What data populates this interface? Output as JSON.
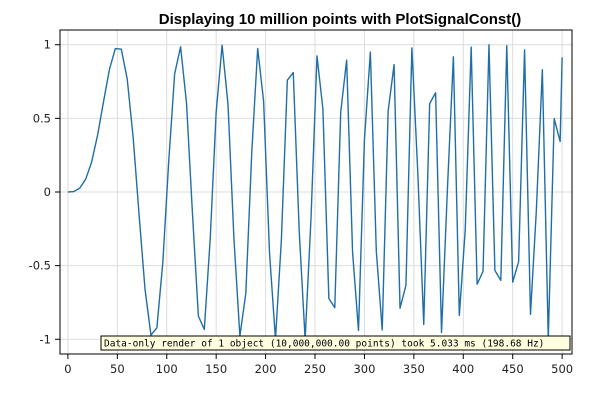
{
  "chart_data": {
    "type": "line",
    "title": "Displaying 10 million points with PlotSignalConst()",
    "xlabel": "",
    "ylabel": "",
    "xlim": [
      -8,
      510
    ],
    "ylim": [
      -1.1,
      1.1
    ],
    "x_ticks": [
      0,
      50,
      100,
      150,
      200,
      250,
      300,
      350,
      400,
      450,
      500
    ],
    "x_tick_labels": [
      "0",
      "50",
      "100",
      "150",
      "200",
      "250",
      "300",
      "350",
      "400",
      "450",
      "500"
    ],
    "y_ticks": [
      1,
      0.5,
      0,
      -0.5,
      -1
    ],
    "y_tick_labels": [
      "1",
      "0.5",
      "0",
      "-0.5",
      "-1"
    ],
    "grid": true,
    "series": [
      {
        "color": "#1f6ea8",
        "point_count": 10000000,
        "x": [
          0,
          6,
          12,
          18,
          24,
          30,
          36,
          42,
          48,
          54,
          60,
          66,
          72,
          78,
          84,
          90,
          96,
          102,
          108,
          114,
          120,
          126,
          132,
          138,
          144,
          150,
          156,
          162,
          168,
          174,
          180,
          186,
          192,
          198,
          204,
          210,
          216,
          222,
          228,
          234,
          240,
          246,
          252,
          258,
          264,
          270,
          276,
          282,
          288,
          294,
          300,
          306,
          312,
          318,
          324,
          330,
          336,
          342,
          348,
          354,
          360,
          366,
          372,
          378,
          384,
          390,
          396,
          402,
          408,
          414,
          420,
          426,
          432,
          438,
          444,
          450,
          456,
          462,
          468,
          474,
          480,
          486,
          492,
          498,
          500
        ],
        "y": [
          0,
          0.003,
          0.026,
          0.087,
          0.204,
          0.385,
          0.612,
          0.832,
          0.974,
          0.97,
          0.767,
          0.371,
          -0.152,
          -0.659,
          -0.971,
          -0.923,
          -0.48,
          0.208,
          0.803,
          0.986,
          0.603,
          -0.144,
          -0.843,
          -0.933,
          -0.314,
          0.543,
          0.997,
          0.593,
          -0.321,
          -0.978,
          -0.688,
          0.266,
          0.975,
          0.616,
          -0.416,
          -0.999,
          -0.321,
          0.759,
          0.811,
          -0.264,
          -1.0,
          -0.17,
          0.924,
          0.562,
          -0.723,
          -0.785,
          0.542,
          0.895,
          -0.409,
          -0.94,
          0.355,
          0.95,
          -0.4,
          -0.937,
          0.551,
          0.865,
          -0.789,
          -0.634,
          0.978,
          0.13,
          -0.899,
          0.6,
          0.674,
          -0.954,
          0.025,
          0.918,
          -0.839,
          -0.254,
          0.984,
          -0.626,
          -0.539,
          1.0,
          -0.533,
          -0.6,
          0.993,
          -0.612,
          -0.473,
          0.965,
          -0.831,
          -0.115,
          0.83,
          -0.997,
          0.498,
          0.343,
          0.914
        ]
      }
    ],
    "annotation": "Data-only render of 1 object (10,000,000.00 points) took 5.033 ms (198.68 Hz)"
  }
}
